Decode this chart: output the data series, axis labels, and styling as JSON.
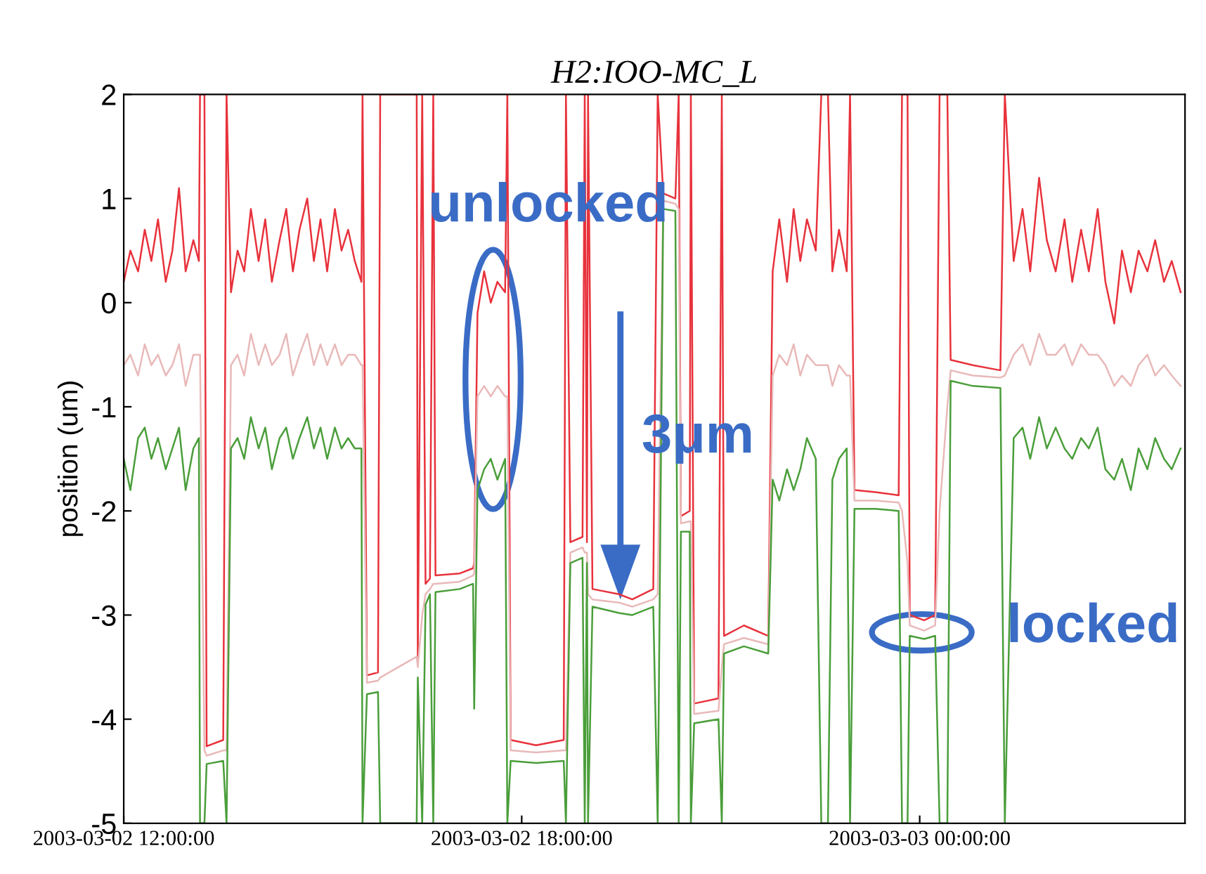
{
  "chart_data": {
    "type": "line",
    "title": "H2:IOO-MC_L",
    "ylabel": "position (um)",
    "annotations": [
      "unlocked",
      "3μm",
      "locked"
    ],
    "x": [
      "2003-03-02T12:00",
      "2003-03-02T12:06",
      "2003-03-02T12:13",
      "2003-03-02T12:19",
      "2003-03-02T12:25",
      "2003-03-02T12:31",
      "2003-03-02T12:38",
      "2003-03-02T12:44",
      "2003-03-02T12:50",
      "2003-03-02T12:56",
      "2003-03-02T13:03",
      "2003-03-02T13:08",
      "2003-03-02T13:09",
      "2003-03-02T13:13",
      "2003-03-02T13:15",
      "2003-03-02T13:30",
      "2003-03-02T13:33",
      "2003-03-02T13:37",
      "2003-03-02T13:43",
      "2003-03-02T13:49",
      "2003-03-02T13:55",
      "2003-03-02T14:02",
      "2003-03-02T14:08",
      "2003-03-02T14:14",
      "2003-03-02T14:21",
      "2003-03-02T14:27",
      "2003-03-02T14:33",
      "2003-03-02T14:39",
      "2003-03-02T14:46",
      "2003-03-02T14:52",
      "2003-03-02T14:58",
      "2003-03-02T15:04",
      "2003-03-02T15:11",
      "2003-03-02T15:17",
      "2003-03-02T15:23",
      "2003-03-02T15:29",
      "2003-03-02T15:35",
      "2003-03-02T15:36",
      "2003-03-02T15:40",
      "2003-03-02T15:50",
      "2003-03-02T15:52",
      "2003-03-02T16:25",
      "2003-03-02T16:26",
      "2003-03-02T16:30",
      "2003-03-02T16:33",
      "2003-03-02T16:37",
      "2003-03-02T16:40",
      "2003-03-02T16:42",
      "2003-03-02T17:04",
      "2003-03-02T17:16",
      "2003-03-02T17:17",
      "2003-03-02T17:20",
      "2003-03-02T17:26",
      "2003-03-02T17:32",
      "2003-03-02T17:38",
      "2003-03-02T17:45",
      "2003-03-02T17:47",
      "2003-03-02T17:50",
      "2003-03-02T18:13",
      "2003-03-02T18:38",
      "2003-03-02T18:40",
      "2003-03-02T18:44",
      "2003-03-02T18:55",
      "2003-03-02T18:57",
      "2003-03-02T18:59",
      "2003-03-02T19:00",
      "2003-03-02T19:04",
      "2003-03-02T19:28",
      "2003-03-02T19:40",
      "2003-03-02T19:59",
      "2003-03-02T20:03",
      "2003-03-02T20:08",
      "2003-03-02T20:19",
      "2003-03-02T20:22",
      "2003-03-02T20:24",
      "2003-03-02T20:32",
      "2003-03-02T20:33",
      "2003-03-02T20:36",
      "2003-03-02T20:58",
      "2003-03-02T21:01",
      "2003-03-02T21:03",
      "2003-03-02T21:21",
      "2003-03-02T21:43",
      "2003-03-02T21:47",
      "2003-03-02T21:53",
      "2003-03-02T22:00",
      "2003-03-02T22:06",
      "2003-03-02T22:12",
      "2003-03-02T22:18",
      "2003-03-02T22:26",
      "2003-03-02T22:31",
      "2003-03-02T22:37",
      "2003-03-02T22:41",
      "2003-03-02T22:47",
      "2003-03-02T22:54",
      "2003-03-02T22:57",
      "2003-03-02T23:01",
      "2003-03-02T23:20",
      "2003-03-02T23:41",
      "2003-03-02T23:44",
      "2003-03-02T23:49",
      "2003-03-02T23:51",
      "2003-03-03T00:04",
      "2003-03-03T00:14",
      "2003-03-03T00:18",
      "2003-03-03T00:25",
      "2003-03-03T00:28",
      "2003-03-03T00:48",
      "2003-03-03T01:13",
      "2003-03-03T01:17",
      "2003-03-03T01:25",
      "2003-03-03T01:33",
      "2003-03-03T01:40",
      "2003-03-03T01:48",
      "2003-03-03T01:55",
      "2003-03-03T02:03",
      "2003-03-03T02:11",
      "2003-03-03T02:18",
      "2003-03-03T02:26",
      "2003-03-03T02:33",
      "2003-03-03T02:41",
      "2003-03-03T02:48",
      "2003-03-03T02:56",
      "2003-03-03T03:03",
      "2003-03-03T03:11",
      "2003-03-03T03:18",
      "2003-03-03T03:26",
      "2003-03-03T03:33",
      "2003-03-03T03:41",
      "2003-03-03T03:48",
      "2003-03-03T03:56"
    ],
    "series": [
      {
        "color": "#e8323c",
        "values": [
          0.2,
          0.5,
          0.3,
          0.7,
          0.4,
          0.8,
          0.2,
          0.5,
          1.1,
          0.3,
          0.6,
          0.4,
          2,
          2,
          -4.26,
          -4.2,
          2,
          0.1,
          0.5,
          0.3,
          0.9,
          0.4,
          0.8,
          0.2,
          0.6,
          0.9,
          0.3,
          0.7,
          1.0,
          0.4,
          0.8,
          0.3,
          0.9,
          0.5,
          0.7,
          0.4,
          0.2,
          2,
          -3.58,
          -3.55,
          2,
          2,
          -3.4,
          2,
          -2.7,
          -2.65,
          2,
          -2.62,
          -2.6,
          -2.55,
          -2.5,
          -0.1,
          0.3,
          0.0,
          0.2,
          0.1,
          2,
          -4.2,
          -4.25,
          -4.2,
          2,
          -2.3,
          -2.25,
          2,
          -2.3,
          2,
          -2.75,
          -2.8,
          -2.85,
          -2.75,
          2,
          1.05,
          1.0,
          2,
          -2.05,
          -2.0,
          2,
          -3.85,
          -3.8,
          2,
          -3.2,
          -3.1,
          -3.2,
          0.3,
          0.8,
          0.2,
          0.9,
          0.4,
          0.8,
          0.5,
          2,
          2,
          0.3,
          0.7,
          0.3,
          2,
          -1.8,
          -1.82,
          -1.85,
          2,
          2,
          -3.0,
          -3.05,
          -3.0,
          2,
          2,
          -0.55,
          -0.6,
          -0.65,
          2,
          0.4,
          0.9,
          0.3,
          1.2,
          0.6,
          0.3,
          0.8,
          0.2,
          0.7,
          0.3,
          0.9,
          0.2,
          -0.2,
          0.5,
          0.1,
          0.5,
          0.3,
          0.6,
          0.2,
          0.4,
          0.1
        ]
      },
      {
        "color": "#e9b9b9",
        "values": [
          -0.6,
          -0.5,
          -0.7,
          -0.4,
          -0.6,
          -0.5,
          -0.7,
          -0.6,
          -0.4,
          -0.8,
          -0.5,
          -0.5,
          -0.5,
          -4.3,
          -4.35,
          -4.3,
          -4.3,
          -0.6,
          -0.5,
          -0.7,
          -0.3,
          -0.6,
          -0.4,
          -0.6,
          -0.5,
          -0.3,
          -0.7,
          -0.5,
          -0.3,
          -0.6,
          -0.4,
          -0.6,
          -0.4,
          -0.6,
          -0.5,
          -0.5,
          -0.6,
          -0.6,
          -3.65,
          -3.63,
          -3.6,
          -3.4,
          -3.5,
          -3.0,
          -2.8,
          -2.75,
          -2.7,
          -2.7,
          -2.68,
          -2.62,
          -2.6,
          -0.9,
          -0.8,
          -0.9,
          -0.8,
          -0.9,
          -0.9,
          -4.3,
          -4.32,
          -4.3,
          -4.3,
          -2.4,
          -2.35,
          -2.4,
          -2.4,
          -2.8,
          -2.85,
          -2.88,
          -2.92,
          -2.85,
          -2.8,
          0.98,
          0.95,
          0.9,
          -2.12,
          -2.1,
          -2.1,
          -3.95,
          -3.92,
          -3.5,
          -3.28,
          -3.22,
          -3.28,
          -0.7,
          -0.5,
          -0.6,
          -0.4,
          -0.7,
          -0.5,
          -0.6,
          -0.6,
          -0.6,
          -0.8,
          -0.6,
          -0.7,
          -0.7,
          -1.9,
          -1.9,
          -1.92,
          -2.0,
          -2.5,
          -3.1,
          -3.15,
          -3.1,
          -2.0,
          -1.0,
          -0.65,
          -0.7,
          -0.72,
          -0.7,
          -0.5,
          -0.4,
          -0.6,
          -0.3,
          -0.5,
          -0.5,
          -0.4,
          -0.6,
          -0.4,
          -0.5,
          -0.5,
          -0.6,
          -0.8,
          -0.7,
          -0.8,
          -0.6,
          -0.5,
          -0.7,
          -0.6,
          -0.7,
          -0.8
        ]
      },
      {
        "color": "#4a9e3a",
        "values": [
          -1.5,
          -1.8,
          -1.3,
          -1.2,
          -1.5,
          -1.3,
          -1.6,
          -1.4,
          -1.2,
          -1.8,
          -1.4,
          -1.3,
          -5,
          -5,
          -4.43,
          -4.4,
          -5,
          -1.4,
          -1.3,
          -1.5,
          -1.1,
          -1.4,
          -1.2,
          -1.6,
          -1.3,
          -1.2,
          -1.5,
          -1.3,
          -1.1,
          -1.4,
          -1.2,
          -1.5,
          -1.2,
          -1.4,
          -1.3,
          -1.4,
          -1.4,
          -5,
          -3.76,
          -3.74,
          -5,
          -5,
          -3.6,
          -5,
          -2.9,
          -2.8,
          -5,
          -2.78,
          -2.75,
          -2.7,
          -3.9,
          -1.8,
          -1.6,
          -1.5,
          -1.7,
          -1.5,
          -5,
          -4.4,
          -4.42,
          -4.4,
          -5,
          -2.5,
          -2.45,
          -5,
          -2.5,
          -5,
          -2.92,
          -2.98,
          -3.0,
          -2.92,
          -5,
          0.9,
          0.88,
          -5,
          -2.2,
          -2.2,
          -5,
          -4.04,
          -4.0,
          -5,
          -3.37,
          -3.3,
          -3.37,
          -1.7,
          -1.9,
          -1.6,
          -1.8,
          -1.6,
          -1.3,
          -1.5,
          -5,
          -5,
          -1.7,
          -1.5,
          -1.4,
          -5,
          -1.98,
          -1.98,
          -2.0,
          -5,
          -5,
          -3.2,
          -3.23,
          -3.2,
          -5,
          -5,
          -0.75,
          -0.8,
          -0.82,
          -5,
          -1.3,
          -1.2,
          -1.5,
          -1.1,
          -1.4,
          -1.2,
          -1.4,
          -1.5,
          -1.3,
          -1.4,
          -1.2,
          -1.6,
          -1.7,
          -1.5,
          -1.8,
          -1.4,
          -1.6,
          -1.3,
          -1.5,
          -1.6,
          -1.4
        ]
      }
    ],
    "xlim": [
      "2003-03-02T12:00",
      "2003-03-03T04:00"
    ],
    "xticks": [
      {
        "value": "2003-03-02T12:00",
        "label": "2003-03-02 12:00:00"
      },
      {
        "value": "2003-03-02T18:00",
        "label": "2003-03-02 18:00:00"
      },
      {
        "value": "2003-03-03T00:00",
        "label": "2003-03-03 00:00:00"
      }
    ],
    "ylim": [
      -5,
      2
    ],
    "yticks": [
      -5,
      -4,
      -3,
      -2,
      -1,
      0,
      1,
      2
    ],
    "grid": false,
    "legend": false,
    "marker": "none",
    "line_style": "solid"
  }
}
